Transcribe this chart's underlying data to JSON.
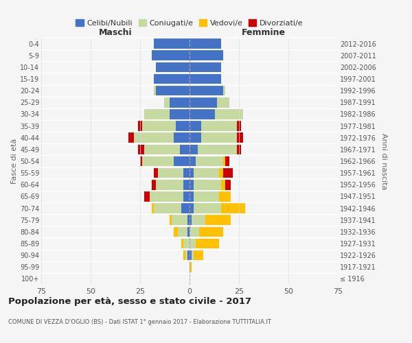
{
  "age_groups": [
    "100+",
    "95-99",
    "90-94",
    "85-89",
    "80-84",
    "75-79",
    "70-74",
    "65-69",
    "60-64",
    "55-59",
    "50-54",
    "45-49",
    "40-44",
    "35-39",
    "30-34",
    "25-29",
    "20-24",
    "15-19",
    "10-14",
    "5-9",
    "0-4"
  ],
  "birth_years": [
    "≤ 1916",
    "1917-1921",
    "1922-1926",
    "1927-1931",
    "1932-1936",
    "1937-1941",
    "1942-1946",
    "1947-1951",
    "1952-1956",
    "1957-1961",
    "1962-1966",
    "1967-1971",
    "1972-1976",
    "1977-1981",
    "1982-1986",
    "1987-1991",
    "1992-1996",
    "1997-2001",
    "2002-2006",
    "2007-2011",
    "2012-2016"
  ],
  "maschi": {
    "celibi": [
      0,
      0,
      1,
      0,
      1,
      1,
      4,
      3,
      3,
      3,
      8,
      5,
      8,
      7,
      10,
      10,
      17,
      18,
      17,
      19,
      18
    ],
    "coniugati": [
      0,
      0,
      1,
      3,
      5,
      8,
      14,
      17,
      14,
      13,
      16,
      18,
      20,
      17,
      13,
      3,
      1,
      0,
      0,
      0,
      0
    ],
    "vedovi": [
      0,
      0,
      1,
      1,
      2,
      1,
      1,
      0,
      0,
      0,
      0,
      0,
      0,
      0,
      0,
      0,
      0,
      0,
      0,
      0,
      0
    ],
    "divorziati": [
      0,
      0,
      0,
      0,
      0,
      0,
      0,
      3,
      2,
      2,
      1,
      3,
      3,
      2,
      0,
      0,
      0,
      0,
      0,
      0,
      0
    ]
  },
  "femmine": {
    "nubili": [
      0,
      0,
      1,
      0,
      0,
      1,
      2,
      2,
      2,
      2,
      3,
      4,
      6,
      6,
      13,
      14,
      17,
      16,
      16,
      17,
      16
    ],
    "coniugate": [
      0,
      0,
      1,
      3,
      5,
      7,
      14,
      13,
      14,
      13,
      14,
      20,
      18,
      18,
      14,
      6,
      1,
      0,
      0,
      0,
      0
    ],
    "vedove": [
      0,
      1,
      5,
      12,
      12,
      13,
      12,
      6,
      2,
      2,
      1,
      0,
      0,
      0,
      0,
      0,
      0,
      0,
      0,
      0,
      0
    ],
    "divorziate": [
      0,
      0,
      0,
      0,
      0,
      0,
      0,
      0,
      3,
      5,
      2,
      2,
      3,
      2,
      0,
      0,
      0,
      0,
      0,
      0,
      0
    ]
  },
  "colors": {
    "celibi_nubili": "#4472c4",
    "coniugati": "#c5d9a0",
    "vedovi": "#ffc000",
    "divorziati": "#cc0000"
  },
  "xlim": 75,
  "title": "Popolazione per età, sesso e stato civile - 2017",
  "subtitle": "COMUNE DI VEZZA D'OGLIO (BS) - Dati ISTAT 1° gennaio 2017 - Elaborazione TUTTITALIA.IT",
  "ylabel_left": "Fasce di età",
  "ylabel_right": "Anni di nascita",
  "legend_labels": [
    "Celibi/Nubili",
    "Coniugati/e",
    "Vedovi/e",
    "Divorziati/e"
  ],
  "maschi_label": "Maschi",
  "femmine_label": "Femmine",
  "background_color": "#f5f5f5"
}
